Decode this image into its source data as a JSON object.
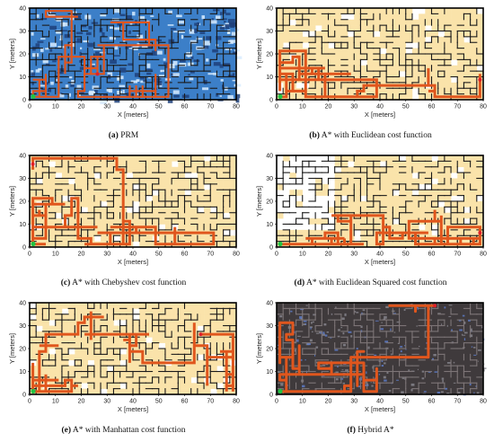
{
  "figure": {
    "panels": [
      {
        "id": "a",
        "tag": "(a)",
        "caption": "PRM",
        "style": "prm",
        "highlight_mode": "none",
        "x_label": "X [meters]",
        "y_label": "Y [meters]",
        "x_ticks": [
          "0",
          "10",
          "20",
          "30",
          "40",
          "50",
          "60",
          "70",
          "80"
        ],
        "y_ticks": [
          "0",
          "10",
          "20",
          "30",
          "40"
        ]
      },
      {
        "id": "b",
        "tag": "(b)",
        "caption": "A* with Euclidean cost function",
        "style": "astar",
        "highlight_mode": "most",
        "x_label": "X [meters]",
        "y_label": "Y [meters]",
        "x_ticks": [
          "0",
          "10",
          "20",
          "30",
          "40",
          "50",
          "60",
          "70",
          "80"
        ],
        "y_ticks": [
          "0",
          "10",
          "20",
          "30",
          "40"
        ]
      },
      {
        "id": "c",
        "tag": "(c)",
        "caption": "A* with Chebyshev cost function",
        "style": "astar",
        "highlight_mode": "most",
        "x_label": "X [meters]",
        "y_label": "Y [meters]",
        "x_ticks": [
          "0",
          "10",
          "20",
          "30",
          "40",
          "50",
          "60",
          "70",
          "80"
        ],
        "y_ticks": [
          "0",
          "10",
          "20",
          "30",
          "40"
        ]
      },
      {
        "id": "d",
        "tag": "(d)",
        "caption": "A* with Euclidean Squared cost function",
        "style": "astar",
        "highlight_mode": "partial",
        "x_label": "X [meters]",
        "y_label": "Y [meters]",
        "x_ticks": [
          "0",
          "10",
          "20",
          "30",
          "40",
          "50",
          "60",
          "70",
          "80"
        ],
        "y_ticks": [
          "0",
          "10",
          "20",
          "30",
          "40"
        ]
      },
      {
        "id": "e",
        "tag": "(e)",
        "caption": "A* with Manhattan cost function",
        "style": "astar",
        "highlight_mode": "most",
        "x_label": "X [meters]",
        "y_label": "Y [meters]",
        "x_ticks": [
          "0",
          "10",
          "20",
          "30",
          "40",
          "50",
          "60",
          "70",
          "80"
        ],
        "y_ticks": [
          "0",
          "10",
          "20",
          "30",
          "40"
        ]
      },
      {
        "id": "f",
        "tag": "(f)",
        "caption": "Hybrid A*",
        "style": "hybrid",
        "highlight_mode": "none",
        "x_label": "X [meters]",
        "y_label": "Y [meters]",
        "x_ticks": [
          "0",
          "10",
          "20",
          "30",
          "40",
          "50",
          "60",
          "70",
          "80"
        ],
        "y_ticks": [
          "0",
          "10",
          "20",
          "30",
          "40"
        ]
      }
    ],
    "colors": {
      "path": "#e0561d",
      "explored": "#fae3aa",
      "wall": "#1a1a1a",
      "start": "#22c443",
      "goal": "#e0202a",
      "prm_bg": "#3c7fc8",
      "prm_light": "#d8ecff",
      "hybrid_bg": "#3f3a3c"
    }
  }
}
